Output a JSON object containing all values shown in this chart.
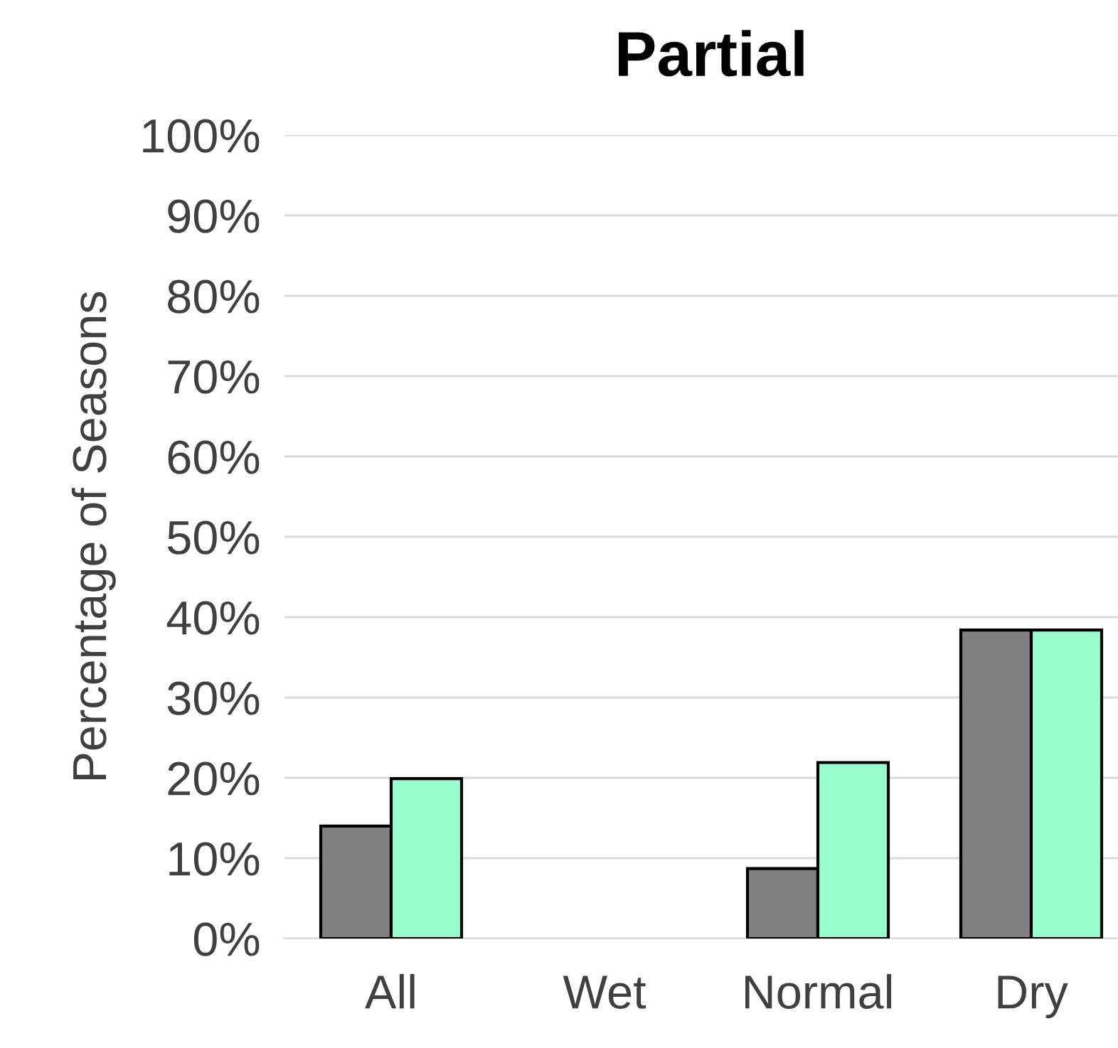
{
  "chart_data": {
    "type": "bar",
    "title": "Partial",
    "ylabel": "Percentage of Seasons",
    "categories": [
      "All",
      "Wet",
      "Normal",
      "Dry"
    ],
    "series": [
      {
        "color": "#808080",
        "values": [
          14,
          0,
          8.7,
          38.4
        ]
      },
      {
        "color": "#99ffcc",
        "values": [
          19.9,
          0,
          21.9,
          38.4
        ]
      }
    ],
    "ylim": [
      0,
      100
    ],
    "yticks": [
      {
        "value": 0,
        "label": "0%"
      },
      {
        "value": 10,
        "label": "10%"
      },
      {
        "value": 20,
        "label": "20%"
      },
      {
        "value": 30,
        "label": "30%"
      },
      {
        "value": 40,
        "label": "40%"
      },
      {
        "value": 50,
        "label": "50%"
      },
      {
        "value": 60,
        "label": "60%"
      },
      {
        "value": 70,
        "label": "70%"
      },
      {
        "value": 80,
        "label": "80%"
      },
      {
        "value": 90,
        "label": "90%"
      },
      {
        "value": 100,
        "label": "100%"
      }
    ],
    "grid": "y",
    "legend": false
  }
}
